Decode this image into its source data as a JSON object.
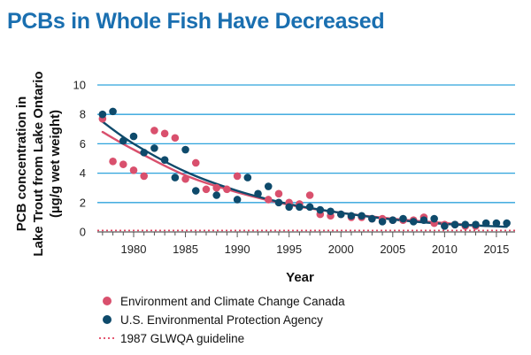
{
  "title": "PCBs in Whole Fish Have Decreased",
  "colors": {
    "title": "#1a6fb0",
    "gridline": "#2ea3dc",
    "epa": "#0e4a6b",
    "ecc": "#d9506d",
    "guideline": "#e0405e"
  },
  "chart_data": {
    "type": "scatter",
    "xlabel": "Year",
    "ylabel_lines": [
      "PCB concentration in",
      "Lake Trout from Lake Ontario",
      "(µg/g wet weight)"
    ],
    "xlim": [
      1976.5,
      2016.8
    ],
    "ylim": [
      0,
      10
    ],
    "xticks": [
      1980,
      1985,
      1990,
      1995,
      2000,
      2005,
      2010,
      2015
    ],
    "yticks": [
      0,
      2,
      4,
      6,
      8,
      10
    ],
    "grid": "horizontal",
    "legend_position": "bottom",
    "series": [
      {
        "name": "Environment and Climate Change Canada",
        "kind": "points",
        "color": "#d9506d",
        "points": [
          [
            1977,
            7.7
          ],
          [
            1978,
            4.8
          ],
          [
            1979,
            4.6
          ],
          [
            1980,
            4.2
          ],
          [
            1981,
            3.8
          ],
          [
            1982,
            6.9
          ],
          [
            1983,
            6.7
          ],
          [
            1984,
            6.4
          ],
          [
            1985,
            3.6
          ],
          [
            1986,
            4.7
          ],
          [
            1987,
            2.9
          ],
          [
            1988,
            3.0
          ],
          [
            1989,
            2.9
          ],
          [
            1990,
            3.8
          ],
          [
            1993,
            2.2
          ],
          [
            1994,
            2.6
          ],
          [
            1995,
            2.0
          ],
          [
            1996,
            1.9
          ],
          [
            1997,
            2.5
          ],
          [
            1998,
            1.2
          ],
          [
            1999,
            1.1
          ],
          [
            2000,
            1.2
          ],
          [
            2001,
            1.0
          ],
          [
            2002,
            1.0
          ],
          [
            2003,
            0.9
          ],
          [
            2004,
            0.9
          ],
          [
            2005,
            0.8
          ],
          [
            2006,
            0.8
          ],
          [
            2007,
            0.8
          ],
          [
            2008,
            1.0
          ],
          [
            2009,
            0.6
          ],
          [
            2010,
            0.5
          ],
          [
            2011,
            0.5
          ],
          [
            2012,
            0.4
          ],
          [
            2013,
            0.4
          ]
        ]
      },
      {
        "name": "U.S. Environmental Protection Agency",
        "kind": "points",
        "color": "#0e4a6b",
        "points": [
          [
            1977,
            8.0
          ],
          [
            1978,
            8.2
          ],
          [
            1979,
            6.2
          ],
          [
            1980,
            6.5
          ],
          [
            1981,
            5.4
          ],
          [
            1982,
            5.7
          ],
          [
            1983,
            4.9
          ],
          [
            1984,
            3.7
          ],
          [
            1985,
            5.6
          ],
          [
            1986,
            2.8
          ],
          [
            1988,
            2.5
          ],
          [
            1990,
            2.2
          ],
          [
            1991,
            3.7
          ],
          [
            1992,
            2.6
          ],
          [
            1993,
            3.1
          ],
          [
            1994,
            2.0
          ],
          [
            1995,
            1.7
          ],
          [
            1996,
            1.7
          ],
          [
            1997,
            1.7
          ],
          [
            1998,
            1.5
          ],
          [
            1999,
            1.4
          ],
          [
            2000,
            1.2
          ],
          [
            2001,
            1.1
          ],
          [
            2002,
            1.1
          ],
          [
            2003,
            0.9
          ],
          [
            2004,
            0.7
          ],
          [
            2005,
            0.8
          ],
          [
            2006,
            0.9
          ],
          [
            2007,
            0.7
          ],
          [
            2008,
            0.8
          ],
          [
            2009,
            0.9
          ],
          [
            2010,
            0.4
          ],
          [
            2011,
            0.5
          ],
          [
            2012,
            0.5
          ],
          [
            2013,
            0.5
          ],
          [
            2014,
            0.6
          ],
          [
            2015,
            0.6
          ],
          [
            2016,
            0.6
          ]
        ]
      },
      {
        "name": "ECCC trend",
        "kind": "trendline",
        "color": "#d9506d",
        "points": [
          [
            1977,
            6.8
          ],
          [
            1980,
            5.6
          ],
          [
            1985,
            3.85
          ],
          [
            1990,
            2.7
          ],
          [
            1995,
            1.85
          ],
          [
            2000,
            1.3
          ],
          [
            2005,
            0.9
          ],
          [
            2010,
            0.6
          ],
          [
            2013,
            0.45
          ]
        ]
      },
      {
        "name": "EPA trend",
        "kind": "trendline",
        "color": "#0e4a6b",
        "points": [
          [
            1977,
            7.5
          ],
          [
            1980,
            6.0
          ],
          [
            1985,
            4.1
          ],
          [
            1990,
            2.8
          ],
          [
            1995,
            1.9
          ],
          [
            2000,
            1.3
          ],
          [
            2005,
            0.85
          ],
          [
            2010,
            0.55
          ],
          [
            2016,
            0.35
          ]
        ]
      },
      {
        "name": "1987 GLWQA guideline",
        "kind": "guideline",
        "color": "#e0405e",
        "value": 0.1
      }
    ],
    "legend": [
      {
        "label": "Environment and Climate Change Canada",
        "marker": "dot",
        "color": "#d9506d"
      },
      {
        "label": "U.S. Environmental Protection Agency",
        "marker": "dot",
        "color": "#0e4a6b"
      },
      {
        "label": "1987 GLWQA guideline",
        "marker": "dotted-line",
        "color": "#e0405e"
      }
    ]
  }
}
